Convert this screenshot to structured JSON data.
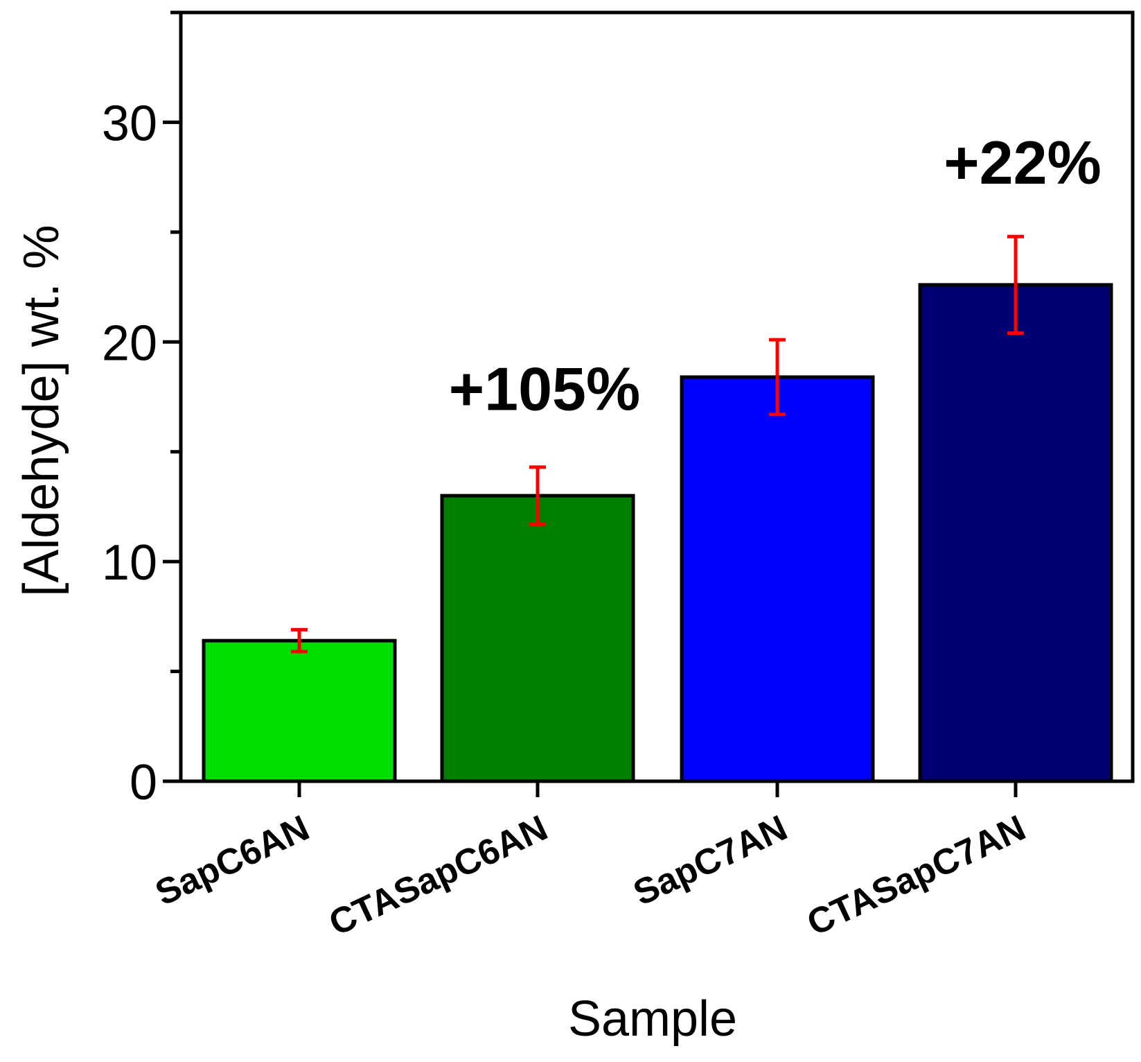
{
  "chart_data": {
    "type": "bar",
    "title": "",
    "xlabel": "Sample",
    "ylabel": "[Aldehyde] wt. %",
    "ylim": [
      0,
      35
    ],
    "yticks": [
      0,
      10,
      20,
      30
    ],
    "grid": false,
    "categories": [
      "SapC6AN",
      "CTASapC6AN",
      "SapC7AN",
      "CTASapC7AN"
    ],
    "values": [
      6.4,
      13.0,
      18.4,
      22.6
    ],
    "errors": [
      0.5,
      1.3,
      1.7,
      2.2
    ],
    "colors": [
      "#00e000",
      "#007f00",
      "#0000ff",
      "#000073"
    ],
    "error_color": "#ff0000",
    "annotations": [
      {
        "category": "CTASapC6AN",
        "text": "+105%",
        "y": 16.9
      },
      {
        "category": "CTASapC7AN",
        "text": "+22%",
        "y": 27.2
      }
    ]
  }
}
